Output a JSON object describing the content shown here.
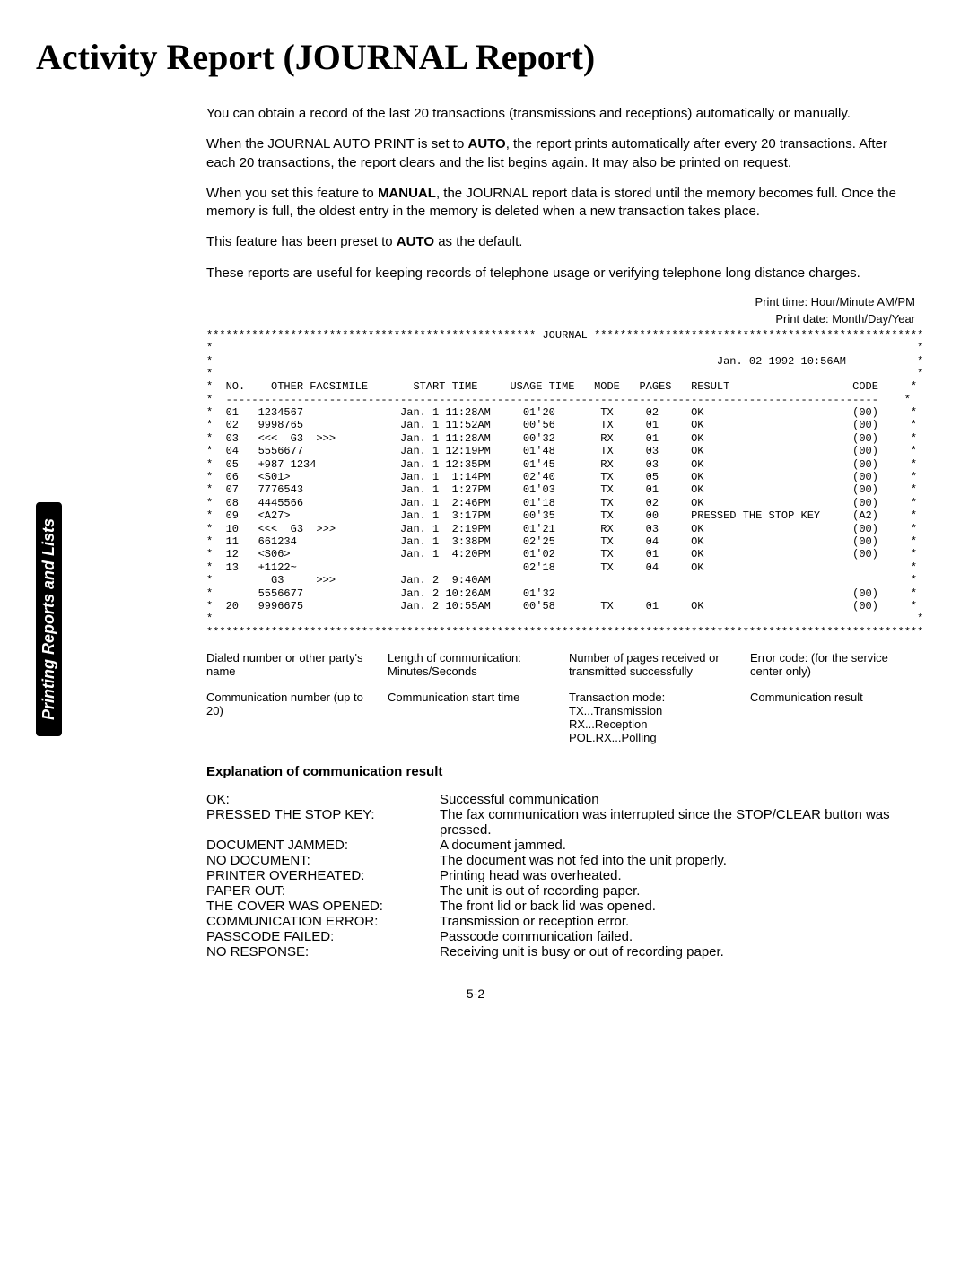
{
  "title": "Activity Report (JOURNAL Report)",
  "sidebar_label": "Printing Reports and Lists",
  "paragraphs": {
    "p1": "You can obtain a record of the last 20 transactions (transmissions and receptions) automatically or manually.",
    "p2a": "When the JOURNAL AUTO PRINT is set to ",
    "p2b": "AUTO",
    "p2c": ", the report prints automatically after every 20 transactions. After each 20 transactions, the report clears and the list begins again. It may also be printed on request.",
    "p3a": "When you set this feature to ",
    "p3b": "MANUAL",
    "p3c": ", the JOURNAL report data is stored until the memory becomes full. Once the memory is full, the oldest entry in the memory is deleted when a new transaction takes place.",
    "p4a": "This feature has been preset to ",
    "p4b": "AUTO",
    "p4c": " as the default.",
    "p5": "These reports are useful for keeping records of telephone usage or verifying telephone long distance charges."
  },
  "header_labels": {
    "print_time": "Print time:  Hour/Minute AM/PM",
    "print_date": "Print date:  Month/Day/Year"
  },
  "journal_text": "*************************************************** JOURNAL ***************************************************\n*                                                                                                             *\n*                                                                              Jan. 02 1992 10:56AM           *\n*                                                                                                             *\n*  NO.    OTHER FACSIMILE       START TIME     USAGE TIME   MODE   PAGES   RESULT                   CODE     *\n*  -----------------------------------------------------------------------------------------------------    *\n*  01   1234567               Jan. 1 11:28AM     01'20       TX     02     OK                       (00)     *\n*  02   9998765               Jan. 1 11:52AM     00'56       TX     01     OK                       (00)     *\n*  03   <<<  G3  >>>          Jan. 1 11:28AM     00'32       RX     01     OK                       (00)     *\n*  04   5556677               Jan. 1 12:19PM     01'48       TX     03     OK                       (00)     *\n*  05   +987 1234             Jan. 1 12:35PM     01'45       RX     03     OK                       (00)     *\n*  06   <S01>                 Jan. 1  1:14PM     02'40       TX     05     OK                       (00)     *\n*  07   7776543               Jan. 1  1:27PM     01'03       TX     01     OK                       (00)     *\n*  08   4445566               Jan. 1  2:46PM     01'18       TX     02     OK                       (00)     *\n*  09   <A27>                 Jan. 1  3:17PM     00'35       TX     00     PRESSED THE STOP KEY     (A2)     *\n*  10   <<<  G3  >>>          Jan. 1  2:19PM     01'21       RX     03     OK                       (00)     *\n*  11   661234                Jan. 1  3:38PM     02'25       TX     04     OK                       (00)     *\n*  12   <S06>                 Jan. 1  4:20PM     01'02       TX     01     OK                       (00)     *\n*  13   +1122~                                   02'18       TX     04     OK                                *\n*         G3     >>>          Jan. 2  9:40AM                                                                 *\n*       5556677               Jan. 2 10:26AM     01'32                                              (00)     *\n*  20   9996675               Jan. 2 10:55AM     00'58       TX     01     OK                       (00)     *\n*                                                                                                             *\n***************************************************************************************************************",
  "legend_top": {
    "col1": "Dialed number or other party's name",
    "col2": "Length of communication: Minutes/Seconds",
    "col3": "Number of pages received or transmitted successfully",
    "col4": "Error code: (for the service center only)"
  },
  "legend_bottom": {
    "col1": "Communication number (up to 20)",
    "col2": "Communication start time",
    "col3": "Transaction mode:\nTX...Transmission\nRX...Reception\nPOL.RX...Polling",
    "col4": "Communication result"
  },
  "explanation_title": "Explanation of communication result",
  "results": [
    {
      "label": "OK:",
      "desc": "Successful communication"
    },
    {
      "label": "PRESSED THE STOP KEY:",
      "desc": "The fax communication was interrupted since the STOP/CLEAR button was pressed."
    },
    {
      "label": "DOCUMENT JAMMED:",
      "desc": "A document jammed."
    },
    {
      "label": "NO DOCUMENT:",
      "desc": "The document was not fed into the unit properly."
    },
    {
      "label": "PRINTER OVERHEATED:",
      "desc": "Printing head was overheated."
    },
    {
      "label": "PAPER OUT:",
      "desc": "The unit is out of recording paper."
    },
    {
      "label": "THE COVER WAS OPENED:",
      "desc": "The front lid or back lid was opened."
    },
    {
      "label": "COMMUNICATION ERROR:",
      "desc": "Transmission or reception error."
    },
    {
      "label": "PASSCODE FAILED:",
      "desc": "Passcode communication failed."
    },
    {
      "label": "NO RESPONSE:",
      "desc": "Receiving unit is busy or out of recording paper."
    }
  ],
  "page_number": "5-2"
}
